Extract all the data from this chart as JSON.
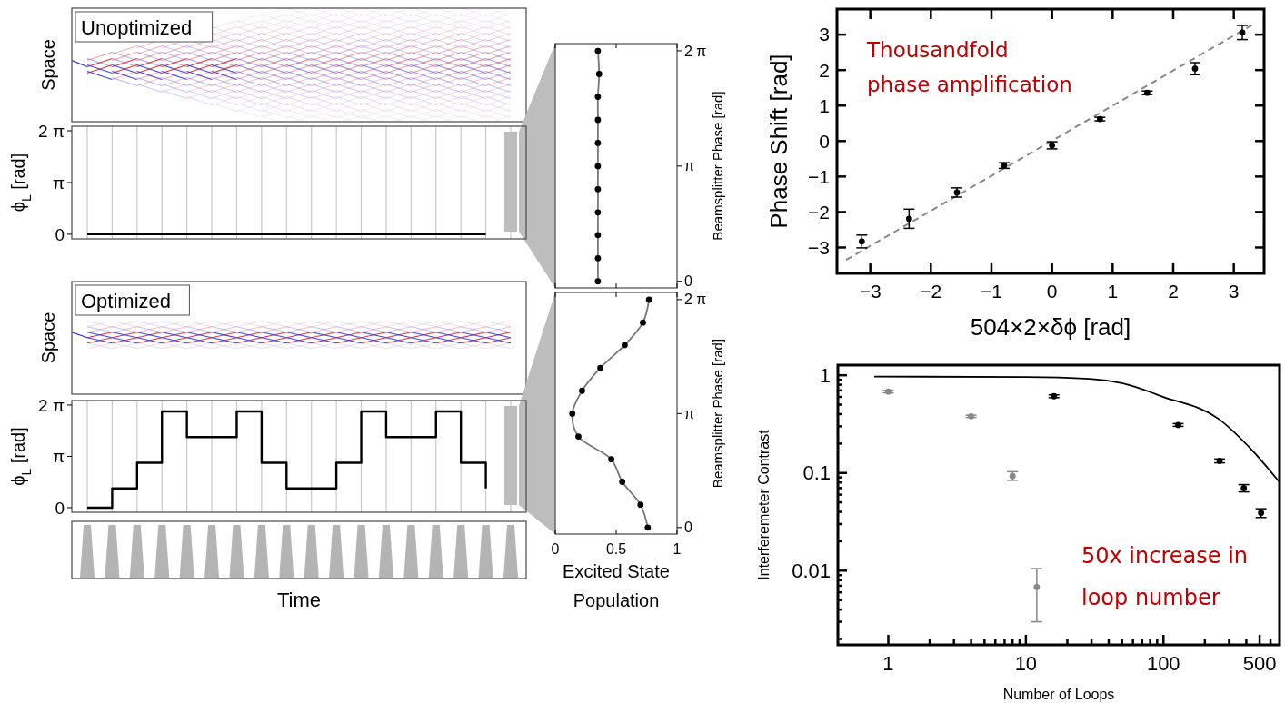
{
  "chart_data": [
    {
      "type": "other",
      "title": "Unoptimized",
      "ylabel": "Space",
      "categories": [
        null,
        null,
        null,
        null,
        null,
        null,
        null,
        null,
        null,
        null,
        null,
        null,
        null,
        null,
        null,
        null,
        null,
        null
      ]
    },
    {
      "type": "step",
      "ylabel": "ϕ$_{L}$ [rad]",
      "categories": [
        null,
        null,
        null,
        null,
        null,
        null,
        null,
        null,
        null,
        null,
        null,
        null,
        null,
        null,
        null,
        null,
        null,
        null
      ],
      "values": [
        0,
        0,
        0,
        0,
        0,
        0,
        0,
        0,
        0,
        0,
        0,
        0,
        0,
        0,
        0,
        0,
        0,
        null
      ],
      "color": "#000000",
      "ylim": [
        -0.28,
        6.56
      ],
      "yticks": [
        0,
        {
          "value": 3.1416,
          "label": "π"
        },
        {
          "value": 6.2832,
          "label": "2 π"
        }
      ],
      "grid": "x"
    },
    {
      "type": "scatter",
      "ylabel": "Beamsplitter Phase [rad]",
      "xlim": [
        0,
        1
      ],
      "xticks": [
        0,
        0.5,
        1
      ],
      "ylim": [
        -0.18,
        6.48
      ],
      "yticks": [
        0,
        {
          "value": 3.1416,
          "label": "π"
        },
        {
          "value": 6.2832,
          "label": "2 π"
        }
      ],
      "tick_labels": "y",
      "series": [
        {
          "type": "line",
          "color": "#777777",
          "x": [
            0.35,
            0.35,
            0.35,
            0.35,
            0.35,
            0.35,
            0.35,
            0.35,
            0.35,
            0.36,
            0.35
          ],
          "values": [
            0,
            0.63,
            1.26,
            1.88,
            2.51,
            3.14,
            3.77,
            4.4,
            5.03,
            5.65,
            6.28
          ]
        },
        {
          "type": "scatter",
          "marker": "circle",
          "color": "#000000",
          "x": [
            0.35,
            0.35,
            0.35,
            0.35,
            0.35,
            0.35,
            0.35,
            0.35,
            0.35,
            0.36,
            0.35
          ],
          "values": [
            0,
            0.63,
            1.26,
            1.88,
            2.51,
            3.14,
            3.77,
            4.4,
            5.03,
            5.65,
            6.28
          ]
        }
      ]
    },
    {
      "type": "other",
      "title": "Optimized",
      "ylabel": "Space",
      "categories": [
        null,
        null,
        null,
        null,
        null,
        null,
        null,
        null,
        null,
        null,
        null,
        null,
        null,
        null,
        null,
        null,
        null,
        null
      ]
    },
    {
      "type": "step",
      "ylabel": "ϕ$_{L}$ [rad]",
      "categories": [
        null,
        null,
        null,
        null,
        null,
        null,
        null,
        null,
        null,
        null,
        null,
        null,
        null,
        null,
        null,
        null,
        null,
        null
      ],
      "values": [
        0,
        1.18,
        2.75,
        5.89,
        4.32,
        4.32,
        5.89,
        2.75,
        1.18,
        1.18,
        2.75,
        5.89,
        4.32,
        4.32,
        5.89,
        2.75,
        1.18,
        null
      ],
      "color": "#000000",
      "ylim": [
        -0.28,
        6.56
      ],
      "yticks": [
        0,
        {
          "value": 3.1416,
          "label": "π"
        },
        {
          "value": 6.2832,
          "label": "2 π"
        }
      ],
      "grid": "x"
    },
    {
      "type": "other",
      "xlabel": "Time",
      "categories": [
        null,
        null,
        null,
        null,
        null,
        null,
        null,
        null,
        null,
        null,
        null,
        null,
        null,
        null,
        null,
        null,
        null,
        null
      ]
    },
    {
      "type": "scatter",
      "ylabel": "Beamsplitter Phase [rad]",
      "xlabel": "Excited State Population",
      "xlim": [
        0,
        1
      ],
      "xticks": [
        0,
        0.5,
        1
      ],
      "ylim": [
        -0.18,
        6.48
      ],
      "yticks": [
        0,
        {
          "value": 3.1416,
          "label": "π"
        },
        {
          "value": 6.2832,
          "label": "2 π"
        }
      ],
      "series": [
        {
          "type": "line",
          "color": "#777777",
          "x": [
            0.76,
            0.7,
            0.55,
            0.46,
            0.19,
            0.14,
            0.22,
            0.37,
            0.57,
            0.72,
            0.77
          ],
          "values": [
            0,
            0.63,
            1.26,
            1.88,
            2.51,
            3.14,
            3.77,
            4.4,
            5.03,
            5.65,
            6.28
          ]
        },
        {
          "type": "scatter",
          "marker": "circle",
          "color": "#000000",
          "x": [
            0.76,
            0.7,
            0.55,
            0.46,
            0.19,
            0.14,
            0.22,
            0.37,
            0.57,
            0.72,
            0.77
          ],
          "values": [
            0,
            0.63,
            1.26,
            1.88,
            2.51,
            3.14,
            3.77,
            4.4,
            5.03,
            5.65,
            6.28
          ]
        }
      ]
    },
    {
      "type": "scatter",
      "xlabel": "504×2×δϕ [rad]",
      "ylabel": "Phase Shift [rad]",
      "xlim": [
        -3.55,
        3.5
      ],
      "xticks": [
        -3,
        -2,
        -1,
        0,
        1,
        2,
        3
      ],
      "ylim": [
        -3.73,
        3.72
      ],
      "yticks": [
        -3,
        -2,
        -1,
        0,
        1,
        2,
        3
      ],
      "annotations": [
        "Thousandfold phase amplification"
      ],
      "series": [
        {
          "type": "line",
          "color": "#888888",
          "line_style": "dashed",
          "x": [
            -3.4,
            3.3
          ],
          "values": [
            -3.35,
            3.27
          ]
        },
        {
          "type": "scatter",
          "marker": "circle",
          "color": "#000000",
          "x": [
            -3.14,
            -2.36,
            -1.57,
            -0.79,
            0,
            0.79,
            1.57,
            2.36,
            3.14
          ],
          "values": [
            -2.83,
            -2.19,
            -1.45,
            -0.69,
            -0.12,
            0.62,
            1.36,
            2.04,
            3.06
          ],
          "errors": [
            0.18,
            0.27,
            0.13,
            0.08,
            0.1,
            0.05,
            0.05,
            0.17,
            0.2
          ]
        }
      ]
    },
    {
      "type": "scatter",
      "xlabel": "Number of Loops",
      "ylabel": "Interferemeter Contrast",
      "log": "xy",
      "xlim": [
        0.43,
        698
      ],
      "xticks": [
        1,
        {
          "value": 2,
          "label": null
        },
        {
          "value": 3,
          "label": null
        },
        {
          "value": 4,
          "label": null
        },
        {
          "value": 5,
          "label": null
        },
        {
          "value": 6,
          "label": null
        },
        {
          "value": 7,
          "label": null
        },
        {
          "value": 8,
          "label": null
        },
        {
          "value": 9,
          "label": null
        },
        10,
        {
          "value": 20,
          "label": null
        },
        {
          "value": 30,
          "label": null
        },
        {
          "value": 40,
          "label": null
        },
        {
          "value": 50,
          "label": null
        },
        {
          "value": 60,
          "label": null
        },
        {
          "value": 70,
          "label": null
        },
        {
          "value": 80,
          "label": null
        },
        {
          "value": 90,
          "label": null
        },
        100,
        {
          "value": 200,
          "label": null
        },
        {
          "value": 300,
          "label": null
        },
        {
          "value": 400,
          "label": null
        },
        500,
        {
          "value": 600,
          "label": null
        }
      ],
      "ylim": [
        0.00174,
        1.27
      ],
      "yticks": [
        {
          "value": 0.002,
          "label": null
        },
        {
          "value": 0.003,
          "label": null
        },
        {
          "value": 0.004,
          "label": null
        },
        {
          "value": 0.005,
          "label": null
        },
        {
          "value": 0.006,
          "label": null
        },
        {
          "value": 0.007,
          "label": null
        },
        {
          "value": 0.008,
          "label": null
        },
        {
          "value": 0.009,
          "label": null
        },
        0.01,
        {
          "value": 0.02,
          "label": null
        },
        {
          "value": 0.03,
          "label": null
        },
        {
          "value": 0.04,
          "label": null
        },
        {
          "value": 0.05,
          "label": null
        },
        {
          "value": 0.06,
          "label": null
        },
        {
          "value": 0.07,
          "label": null
        },
        {
          "value": 0.08,
          "label": null
        },
        {
          "value": 0.09,
          "label": null
        },
        0.1,
        {
          "value": 0.2,
          "label": null
        },
        {
          "value": 0.3,
          "label": null
        },
        {
          "value": 0.4,
          "label": null
        },
        {
          "value": 0.5,
          "label": null
        },
        {
          "value": 0.6,
          "label": null
        },
        {
          "value": 0.7,
          "label": null
        },
        {
          "value": 0.8,
          "label": null
        },
        {
          "value": 0.9,
          "label": null
        },
        1
      ],
      "annotations": [
        "50x increase in loop number"
      ],
      "series": [
        {
          "type": "scatter",
          "marker": "circle",
          "color": "#888888",
          "x": [
            1,
            4,
            8,
            12
          ],
          "values": [
            0.68,
            0.38,
            0.093,
            0.0068
          ],
          "errors": [
            [
              0.66,
              0.7
            ],
            [
              0.37,
              0.39
            ],
            [
              0.084,
              0.103
            ],
            [
              0.003,
              0.0105
            ]
          ]
        },
        {
          "type": "scatter",
          "marker": "circle",
          "color": "#000000",
          "x": [
            16,
            128,
            256,
            384,
            512
          ],
          "values": [
            0.61,
            0.31,
            0.133,
            0.07,
            0.039
          ],
          "errors": [
            0.02,
            0.01,
            0.006,
            0.006,
            0.004
          ]
        },
        {
          "type": "line",
          "color": "#000000",
          "x": [
            0.79,
            10,
            29,
            50,
            100,
            250,
            442,
            690
          ],
          "values": [
            0.97,
            0.96,
            0.92,
            0.83,
            0.6,
            0.36,
            0.17,
            0.082
          ]
        }
      ]
    }
  ]
}
